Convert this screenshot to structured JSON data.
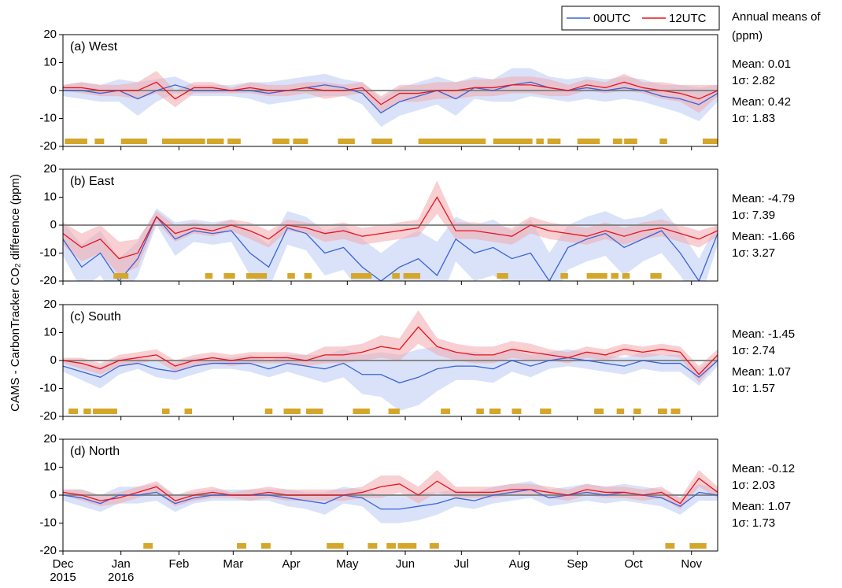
{
  "chart_data": [
    {
      "type": "line",
      "title": "(a) West",
      "ylabel": "CAMS - CarbonTracker CO₂ difference (ppm)",
      "side_title": "Annual means of (ppm)",
      "x": [
        0,
        10,
        20,
        30,
        40,
        50,
        60,
        70,
        80,
        90,
        100,
        110,
        120,
        130,
        140,
        150,
        160,
        170,
        180,
        190,
        200,
        210,
        220,
        230,
        240,
        250,
        260,
        270,
        280,
        290,
        300,
        310,
        320,
        330,
        340,
        350
      ],
      "xlim": [
        0,
        350
      ],
      "ylim": [
        -20,
        20
      ],
      "yticks": [
        -20,
        -10,
        0,
        10,
        20
      ],
      "series": [
        {
          "name": "00UTC",
          "color": "#3a64d8",
          "band_color": "#b9cbf3",
          "stats": [
            "Mean: 0.01",
            "1σ: 2.82"
          ],
          "values": [
            0,
            0,
            -1,
            0,
            -3,
            0,
            2,
            0,
            0,
            0,
            0,
            -1,
            0,
            1,
            2,
            1,
            -1,
            -8,
            -4,
            -2,
            0,
            -3,
            1,
            0,
            2,
            3,
            1,
            0,
            1,
            0,
            1,
            0,
            -2,
            -3,
            -5,
            -1
          ],
          "errors": [
            2,
            3,
            3,
            4,
            6,
            4,
            3,
            2,
            2,
            2,
            3,
            4,
            4,
            4,
            4,
            3,
            4,
            5,
            5,
            5,
            5,
            6,
            4,
            4,
            6,
            5,
            4,
            4,
            4,
            4,
            4,
            4,
            4,
            5,
            6,
            3
          ]
        },
        {
          "name": "12UTC",
          "color": "#e8141c",
          "band_color": "#f2a7ad",
          "stats": [
            "Mean: 0.42",
            "1σ: 1.83"
          ],
          "values": [
            1,
            1,
            0,
            0,
            0,
            3,
            -3,
            1,
            1,
            0,
            1,
            0,
            0,
            1,
            0,
            0,
            1,
            -5,
            -1,
            -1,
            0,
            0,
            1,
            1,
            2,
            2,
            1,
            0,
            2,
            1,
            3,
            1,
            0,
            -1,
            -3,
            0
          ],
          "errors": [
            1,
            2,
            2,
            2,
            3,
            4,
            3,
            2,
            2,
            1,
            2,
            2,
            2,
            2,
            3,
            2,
            2,
            3,
            3,
            3,
            3,
            3,
            3,
            3,
            3,
            3,
            3,
            2,
            2,
            2,
            3,
            2,
            3,
            3,
            5,
            2
          ]
        }
      ],
      "period_color": "#d4a62a",
      "periods": [
        [
          1,
          13
        ],
        [
          17,
          22
        ],
        [
          31,
          45
        ],
        [
          53,
          76
        ],
        [
          77,
          86
        ],
        [
          88,
          95
        ],
        [
          112,
          121
        ],
        [
          123,
          131
        ],
        [
          147,
          156
        ],
        [
          165,
          176
        ],
        [
          190,
          226
        ],
        [
          230,
          251
        ],
        [
          253,
          257
        ],
        [
          259,
          266
        ],
        [
          275,
          287
        ],
        [
          294,
          299
        ],
        [
          300,
          307
        ],
        [
          319,
          323
        ],
        [
          342,
          350
        ]
      ]
    },
    {
      "type": "line",
      "title": "(b) East",
      "x": [
        0,
        10,
        20,
        30,
        40,
        50,
        60,
        70,
        80,
        90,
        100,
        110,
        120,
        130,
        140,
        150,
        160,
        170,
        180,
        190,
        200,
        210,
        220,
        230,
        240,
        250,
        260,
        270,
        280,
        290,
        300,
        310,
        320,
        330,
        340,
        350
      ],
      "xlim": [
        0,
        350
      ],
      "ylim": [
        -20,
        20
      ],
      "yticks": [
        -20,
        -10,
        0,
        10,
        20
      ],
      "series": [
        {
          "name": "00UTC",
          "color": "#3a64d8",
          "band_color": "#b9cbf3",
          "stats": [
            "Mean: -4.79",
            "1σ: 7.39"
          ],
          "values": [
            -5,
            -15,
            -10,
            -20,
            -12,
            3,
            -5,
            -2,
            -3,
            -2,
            -10,
            -15,
            -1,
            -3,
            -10,
            -8,
            -15,
            -20,
            -15,
            -12,
            -18,
            -5,
            -10,
            -8,
            -12,
            -10,
            -20,
            -8,
            -5,
            -3,
            -8,
            -5,
            -2,
            -10,
            -20,
            -3
          ],
          "errors": [
            6,
            8,
            8,
            8,
            6,
            3,
            6,
            4,
            4,
            4,
            8,
            8,
            6,
            6,
            8,
            8,
            10,
            10,
            10,
            10,
            12,
            8,
            10,
            10,
            10,
            12,
            10,
            8,
            8,
            8,
            10,
            8,
            8,
            8,
            8,
            4
          ]
        },
        {
          "name": "12UTC",
          "color": "#e8141c",
          "band_color": "#f2a7ad",
          "stats": [
            "Mean: -1.66",
            "1σ: 3.27"
          ],
          "values": [
            -3,
            -8,
            -5,
            -12,
            -10,
            3,
            -3,
            -1,
            -2,
            0,
            -2,
            -5,
            0,
            -1,
            -3,
            -2,
            -4,
            -3,
            -2,
            -1,
            10,
            -2,
            -2,
            -3,
            -4,
            0,
            -2,
            -3,
            -4,
            -2,
            -4,
            -2,
            -1,
            -3,
            -5,
            -2
          ],
          "errors": [
            4,
            5,
            5,
            6,
            5,
            2,
            3,
            2,
            2,
            2,
            3,
            3,
            2,
            2,
            3,
            3,
            3,
            3,
            3,
            3,
            6,
            3,
            3,
            3,
            3,
            3,
            3,
            3,
            3,
            3,
            3,
            3,
            3,
            3,
            3,
            2
          ]
        }
      ],
      "period_color": "#d4a62a",
      "periods": [
        [
          27,
          35
        ],
        [
          76,
          80
        ],
        [
          86,
          92
        ],
        [
          98,
          109
        ],
        [
          120,
          124
        ],
        [
          129,
          133
        ],
        [
          154,
          165
        ],
        [
          176,
          180
        ],
        [
          182,
          191
        ],
        [
          232,
          238
        ],
        [
          266,
          270
        ],
        [
          280,
          291
        ],
        [
          293,
          297
        ],
        [
          299,
          303
        ],
        [
          314,
          320
        ]
      ]
    },
    {
      "type": "line",
      "title": "(c) South",
      "x": [
        0,
        10,
        20,
        30,
        40,
        50,
        60,
        70,
        80,
        90,
        100,
        110,
        120,
        130,
        140,
        150,
        160,
        170,
        180,
        190,
        200,
        210,
        220,
        230,
        240,
        250,
        260,
        270,
        280,
        290,
        300,
        310,
        320,
        330,
        340,
        350
      ],
      "xlim": [
        0,
        350
      ],
      "ylim": [
        -20,
        20
      ],
      "yticks": [
        -20,
        -10,
        0,
        10,
        20
      ],
      "series": [
        {
          "name": "00UTC",
          "color": "#3a64d8",
          "band_color": "#b9cbf3",
          "stats": [
            "Mean: -1.45",
            "1σ: 2.74"
          ],
          "values": [
            -2,
            -4,
            -6,
            -2,
            -1,
            -3,
            -4,
            -2,
            -1,
            -1,
            -1,
            -3,
            -1,
            -2,
            -3,
            -1,
            -5,
            -5,
            -8,
            -6,
            -3,
            -2,
            -2,
            -3,
            0,
            -2,
            0,
            1,
            0,
            -1,
            -2,
            0,
            -1,
            -1,
            -6,
            0
          ],
          "errors": [
            2,
            3,
            4,
            3,
            2,
            3,
            3,
            3,
            2,
            2,
            3,
            3,
            3,
            4,
            5,
            5,
            7,
            8,
            10,
            10,
            8,
            5,
            5,
            5,
            4,
            4,
            3,
            3,
            3,
            3,
            3,
            3,
            3,
            3,
            3,
            2
          ]
        },
        {
          "name": "12UTC",
          "color": "#e8141c",
          "band_color": "#f2a7ad",
          "stats": [
            "Mean: 1.07",
            "1σ: 1.57"
          ],
          "values": [
            0,
            -1,
            -3,
            0,
            1,
            2,
            -2,
            0,
            1,
            0,
            1,
            1,
            1,
            0,
            2,
            2,
            3,
            5,
            4,
            12,
            5,
            3,
            2,
            2,
            4,
            3,
            2,
            1,
            3,
            2,
            4,
            3,
            4,
            3,
            -5,
            2
          ],
          "errors": [
            1,
            2,
            2,
            2,
            2,
            2,
            2,
            2,
            2,
            2,
            2,
            2,
            2,
            2,
            3,
            3,
            3,
            4,
            4,
            6,
            3,
            3,
            3,
            3,
            3,
            3,
            2,
            2,
            2,
            2,
            2,
            2,
            2,
            2,
            3,
            2
          ]
        }
      ],
      "period_color": "#d4a62a",
      "periods": [
        [
          3,
          8
        ],
        [
          11,
          15
        ],
        [
          16,
          29
        ],
        [
          53,
          57
        ],
        [
          65,
          69
        ],
        [
          108,
          112
        ],
        [
          118,
          127
        ],
        [
          130,
          139
        ],
        [
          155,
          164
        ],
        [
          174,
          180
        ],
        [
          202,
          207
        ],
        [
          221,
          225
        ],
        [
          228,
          234
        ],
        [
          240,
          245
        ],
        [
          255,
          261
        ],
        [
          284,
          289
        ],
        [
          296,
          300
        ],
        [
          305,
          309
        ],
        [
          318,
          323
        ],
        [
          325,
          330
        ]
      ]
    },
    {
      "type": "line",
      "title": "(d) North",
      "x": [
        0,
        10,
        20,
        30,
        40,
        50,
        60,
        70,
        80,
        90,
        100,
        110,
        120,
        130,
        140,
        150,
        160,
        170,
        180,
        190,
        200,
        210,
        220,
        230,
        240,
        250,
        260,
        270,
        280,
        290,
        300,
        310,
        320,
        330,
        340,
        350
      ],
      "xlim": [
        0,
        350
      ],
      "ylim": [
        -20,
        20
      ],
      "yticks": [
        -20,
        -10,
        0,
        10,
        20
      ],
      "xticks": [
        {
          "value": 0,
          "label": "Dec 2015"
        },
        {
          "value": 31,
          "label": "Jan 2016"
        },
        {
          "value": 62,
          "label": "Feb"
        },
        {
          "value": 91,
          "label": "Mar"
        },
        {
          "value": 122,
          "label": "Apr"
        },
        {
          "value": 152,
          "label": "May"
        },
        {
          "value": 183,
          "label": "Jun"
        },
        {
          "value": 213,
          "label": "Jul"
        },
        {
          "value": 244,
          "label": "Aug"
        },
        {
          "value": 275,
          "label": "Sep"
        },
        {
          "value": 305,
          "label": "Oct"
        },
        {
          "value": 336,
          "label": "Nov"
        }
      ],
      "series": [
        {
          "name": "00UTC",
          "color": "#3a64d8",
          "band_color": "#b9cbf3",
          "stats": [
            "Mean: -0.12",
            "1σ: 2.03"
          ],
          "values": [
            0,
            -1,
            -3,
            0,
            0,
            1,
            -3,
            -1,
            0,
            0,
            0,
            0,
            -1,
            -2,
            -3,
            0,
            -1,
            -5,
            -5,
            -4,
            -3,
            -1,
            -2,
            0,
            1,
            2,
            -1,
            0,
            1,
            0,
            1,
            0,
            -1,
            -4,
            1,
            0
          ],
          "errors": [
            2,
            3,
            3,
            3,
            3,
            3,
            3,
            2,
            2,
            2,
            2,
            2,
            3,
            3,
            4,
            3,
            3,
            5,
            5,
            5,
            4,
            3,
            3,
            3,
            3,
            3,
            3,
            3,
            3,
            3,
            3,
            3,
            3,
            3,
            3,
            2
          ]
        },
        {
          "name": "12UTC",
          "color": "#e8141c",
          "band_color": "#f2a7ad",
          "stats": [
            "Mean: 1.07",
            "1σ: 1.73"
          ],
          "values": [
            1,
            0,
            -2,
            -1,
            1,
            3,
            -2,
            0,
            1,
            0,
            0,
            1,
            0,
            0,
            0,
            0,
            1,
            3,
            4,
            0,
            5,
            1,
            1,
            1,
            2,
            2,
            1,
            0,
            2,
            1,
            1,
            0,
            1,
            -3,
            6,
            1
          ],
          "errors": [
            1,
            2,
            2,
            2,
            2,
            2,
            2,
            2,
            2,
            1,
            2,
            2,
            2,
            2,
            2,
            2,
            2,
            4,
            3,
            3,
            4,
            2,
            2,
            2,
            2,
            2,
            2,
            2,
            2,
            2,
            2,
            2,
            2,
            2,
            3,
            2
          ]
        }
      ],
      "period_color": "#d4a62a",
      "periods": [
        [
          43,
          48
        ],
        [
          93,
          98
        ],
        [
          106,
          111
        ],
        [
          141,
          150
        ],
        [
          163,
          168
        ],
        [
          173,
          178
        ],
        [
          179,
          189
        ],
        [
          196,
          201
        ],
        [
          322,
          327
        ],
        [
          335,
          344
        ]
      ]
    }
  ]
}
